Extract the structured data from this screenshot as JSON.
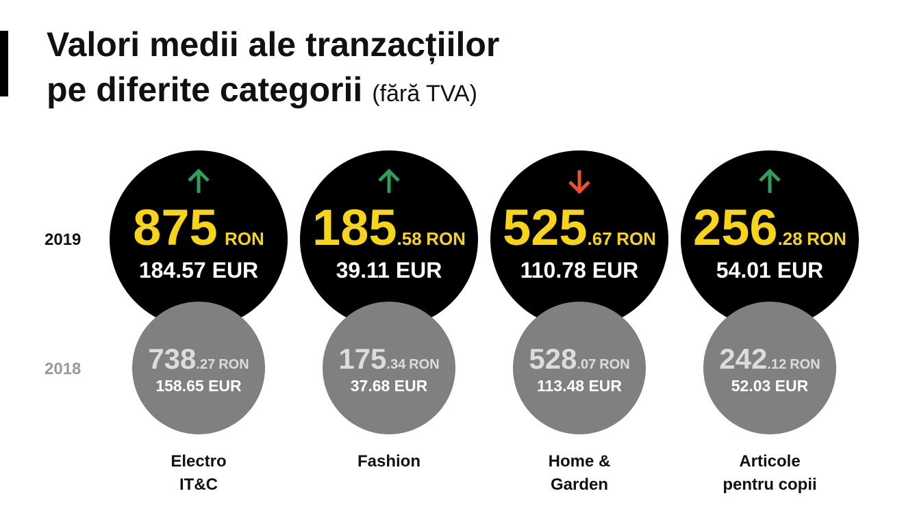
{
  "header": {
    "title_line1": "Valori medii ale tranzacțiilor",
    "title_line2": "pe diferite categorii",
    "title_note": "(fără TVA)"
  },
  "years": [
    "2019",
    "2018"
  ],
  "currency": "RON",
  "categories": [
    {
      "label": [
        "Electro",
        "IT&C"
      ],
      "trend": "up",
      "y2019": {
        "int": "875",
        "eur": "184.57 EUR"
      },
      "y2018": {
        "int": "738",
        "dec": ".27",
        "eur": "158.65 EUR"
      }
    },
    {
      "label": [
        "Fashion"
      ],
      "trend": "up",
      "y2019": {
        "int": "185",
        "dec": ".58",
        "eur": "39.11 EUR"
      },
      "y2018": {
        "int": "175",
        "dec": ".34",
        "eur": "37.68 EUR"
      }
    },
    {
      "label": [
        "Home &",
        "Garden"
      ],
      "trend": "down",
      "y2019": {
        "int": "525",
        "dec": ".67",
        "eur": "110.78 EUR"
      },
      "y2018": {
        "int": "528",
        "dec": ".07",
        "eur": "113.48 EUR"
      }
    },
    {
      "label": [
        "Articole",
        "pentru copii"
      ],
      "trend": "up",
      "y2019": {
        "int": "256",
        "dec": ".28",
        "eur": "54.01 EUR"
      },
      "y2018": {
        "int": "242",
        "dec": ".12",
        "eur": "52.03 EUR"
      }
    }
  ]
}
